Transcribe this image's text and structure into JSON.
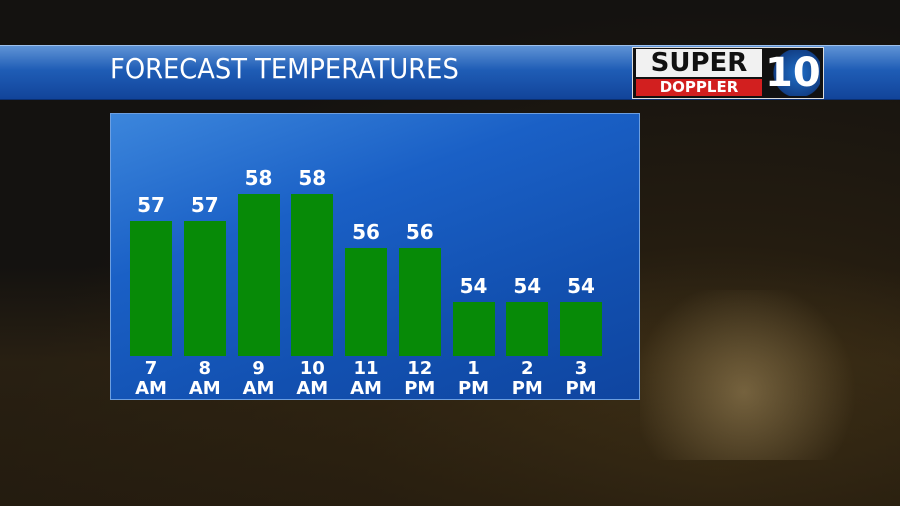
{
  "chart_data": {
    "type": "bar",
    "title": "FORECAST TEMPERATURES",
    "categories": [
      "7\nAM",
      "8\nAM",
      "9\nAM",
      "10\nAM",
      "11\nAM",
      "12\nPM",
      "1\nPM",
      "2\nPM",
      "3\nPM"
    ],
    "values": [
      57,
      57,
      58,
      58,
      56,
      56,
      54,
      54,
      54
    ],
    "color": "#078a07",
    "ylim": [
      52,
      59
    ]
  },
  "logo": {
    "line1": "SUPER",
    "line2": "DOPPLER",
    "number": "10"
  }
}
